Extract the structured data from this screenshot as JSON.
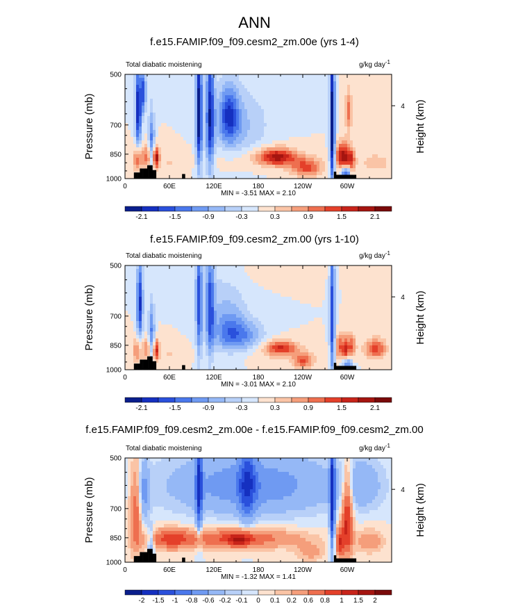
{
  "page_title": "ANN",
  "chart_data": [
    {
      "type": "heatmap",
      "title": "f.e15.FAMIP.f09_f09.cesm2_zm.00e (yrs 1-4)",
      "left_label": "Total diabatic moistening",
      "units_main": "g/kg day",
      "units_exp": "-1",
      "xlabel": "",
      "ylabel": "Pressure (mb)",
      "y2label": "Height (km)",
      "y2_tick_label": "4",
      "x_ticks": [
        "0",
        "60E",
        "120E",
        "180",
        "120W",
        "60W"
      ],
      "y_ticks": [
        "500",
        "700",
        "850",
        "1000"
      ],
      "min_max": "MIN =  -3.51  MAX =   2.10",
      "colorbar_labels": [
        "-2.1",
        "-1.5",
        "-0.9",
        "-0.3",
        "0.3",
        "0.9",
        "1.5",
        "2.1"
      ],
      "colorbar_colors": [
        "#0a1e8c",
        "#1530c0",
        "#2a50dc",
        "#4a78ec",
        "#6f9af2",
        "#95b8f6",
        "#b8d0f8",
        "#d6e6fc",
        "#fde2cf",
        "#fac4a6",
        "#f59e7b",
        "#ee6f4f",
        "#e4402a",
        "#c8241a",
        "#a51510",
        "#7a0a0a"
      ],
      "features": [
        {
          "lon": 18,
          "p": 630,
          "sx": 3,
          "sy": 120,
          "v": -2.2
        },
        {
          "lon": 25,
          "p": 560,
          "sx": 2.5,
          "sy": 60,
          "v": -1.6
        },
        {
          "lon": 30,
          "p": 870,
          "sx": 6,
          "sy": 50,
          "v": 1.1
        },
        {
          "lon": 36,
          "p": 800,
          "sx": 3,
          "sy": 120,
          "v": -1.4
        },
        {
          "lon": 42,
          "p": 870,
          "sx": 3,
          "sy": 45,
          "v": 1.9
        },
        {
          "lon": 16,
          "p": 880,
          "sx": 4,
          "sy": 50,
          "v": 1.1
        },
        {
          "lon": 100,
          "p": 650,
          "sx": 3,
          "sy": 200,
          "v": -2.4
        },
        {
          "lon": 115,
          "p": 660,
          "sx": 4,
          "sy": 200,
          "v": -2.0
        },
        {
          "lon": 140,
          "p": 660,
          "sx": 10,
          "sy": 90,
          "v": -1.6
        },
        {
          "lon": 160,
          "p": 700,
          "sx": 25,
          "sy": 110,
          "v": -0.6
        },
        {
          "lon": 205,
          "p": 865,
          "sx": 18,
          "sy": 35,
          "v": 1.8
        },
        {
          "lon": 245,
          "p": 930,
          "sx": 15,
          "sy": 40,
          "v": 1.3
        },
        {
          "lon": 280,
          "p": 700,
          "sx": 2.5,
          "sy": 240,
          "v": -2.6
        },
        {
          "lon": 290,
          "p": 860,
          "sx": 4,
          "sy": 50,
          "v": 1.6
        },
        {
          "lon": 297,
          "p": 880,
          "sx": 3,
          "sy": 60,
          "v": 1.7
        },
        {
          "lon": 305,
          "p": 880,
          "sx": 4,
          "sy": 50,
          "v": 1.6
        },
        {
          "lon": 302,
          "p": 640,
          "sx": 3,
          "sy": 70,
          "v": 1.0
        },
        {
          "lon": 298,
          "p": 960,
          "sx": 4,
          "sy": 35,
          "v": -2.2
        },
        {
          "lon": 180,
          "p": 880,
          "sx": 50,
          "sy": 40,
          "v": 0.25
        },
        {
          "lon": 338,
          "p": 900,
          "sx": 15,
          "sy": 40,
          "v": 0.5
        },
        {
          "lon": 335,
          "p": 540,
          "sx": 12,
          "sy": 40,
          "v": 0.25
        },
        {
          "lon": 60,
          "p": 900,
          "sx": 10,
          "sy": 50,
          "v": 0.3
        }
      ]
    },
    {
      "type": "heatmap",
      "title": "f.e15.FAMIP.f09_f09.cesm2_zm.00 (yrs 1-10)",
      "left_label": "Total diabatic moistening",
      "units_main": "g/kg day",
      "units_exp": "-1",
      "xlabel": "",
      "ylabel": "Pressure (mb)",
      "y2label": "Height (km)",
      "y2_tick_label": "4",
      "x_ticks": [
        "0",
        "60E",
        "120E",
        "180",
        "120W",
        "60W"
      ],
      "y_ticks": [
        "500",
        "700",
        "850",
        "1000"
      ],
      "min_max": "MIN =  -3.01  MAX =   2.10",
      "colorbar_labels": [
        "-2.1",
        "-1.5",
        "-0.9",
        "-0.3",
        "0.3",
        "0.9",
        "1.5",
        "2.1"
      ],
      "colorbar_colors": [
        "#0a1e8c",
        "#1530c0",
        "#2a50dc",
        "#4a78ec",
        "#6f9af2",
        "#95b8f6",
        "#b8d0f8",
        "#d6e6fc",
        "#fde2cf",
        "#fac4a6",
        "#f59e7b",
        "#ee6f4f",
        "#e4402a",
        "#c8241a",
        "#a51510",
        "#7a0a0a"
      ],
      "features": [
        {
          "lon": 20,
          "p": 640,
          "sx": 3,
          "sy": 120,
          "v": -1.9
        },
        {
          "lon": 30,
          "p": 875,
          "sx": 5,
          "sy": 45,
          "v": 1.0
        },
        {
          "lon": 36,
          "p": 800,
          "sx": 3,
          "sy": 120,
          "v": -1.3
        },
        {
          "lon": 42,
          "p": 880,
          "sx": 3,
          "sy": 45,
          "v": 1.6
        },
        {
          "lon": 16,
          "p": 880,
          "sx": 4,
          "sy": 50,
          "v": 1.0
        },
        {
          "lon": 100,
          "p": 640,
          "sx": 3,
          "sy": 200,
          "v": -1.6
        },
        {
          "lon": 115,
          "p": 660,
          "sx": 4,
          "sy": 190,
          "v": -1.4
        },
        {
          "lon": 140,
          "p": 780,
          "sx": 16,
          "sy": 80,
          "v": -1.2
        },
        {
          "lon": 165,
          "p": 800,
          "sx": 18,
          "sy": 60,
          "v": -0.8
        },
        {
          "lon": 130,
          "p": 620,
          "sx": 25,
          "sy": 80,
          "v": -0.4
        },
        {
          "lon": 210,
          "p": 865,
          "sx": 15,
          "sy": 30,
          "v": 1.5
        },
        {
          "lon": 240,
          "p": 940,
          "sx": 10,
          "sy": 35,
          "v": 1.2
        },
        {
          "lon": 280,
          "p": 700,
          "sx": 2.5,
          "sy": 240,
          "v": -1.8
        },
        {
          "lon": 290,
          "p": 860,
          "sx": 4,
          "sy": 50,
          "v": 1.2
        },
        {
          "lon": 298,
          "p": 880,
          "sx": 3,
          "sy": 60,
          "v": 1.3
        },
        {
          "lon": 306,
          "p": 860,
          "sx": 4,
          "sy": 50,
          "v": 1.2
        },
        {
          "lon": 300,
          "p": 970,
          "sx": 5,
          "sy": 35,
          "v": -1.6
        },
        {
          "lon": 338,
          "p": 870,
          "sx": 10,
          "sy": 40,
          "v": 1.4
        },
        {
          "lon": 180,
          "p": 900,
          "sx": 50,
          "sy": 40,
          "v": 0.2
        },
        {
          "lon": 60,
          "p": 900,
          "sx": 10,
          "sy": 50,
          "v": 0.3
        },
        {
          "lon": 200,
          "p": 520,
          "sx": 30,
          "sy": 30,
          "v": 0.2
        }
      ]
    },
    {
      "type": "heatmap",
      "title": "f.e15.FAMIP.f09_f09.cesm2_zm.00e - f.e15.FAMIP.f09_f09.cesm2_zm.00",
      "left_label": "Total diabatic moistening",
      "units_main": "g/kg day",
      "units_exp": "-1",
      "xlabel": "",
      "ylabel": "Pressure (mb)",
      "y2label": "Height (km)",
      "y2_tick_label": "4",
      "x_ticks": [
        "0",
        "60E",
        "120E",
        "180",
        "120W",
        "60W"
      ],
      "y_ticks": [
        "500",
        "700",
        "850",
        "1000"
      ],
      "min_max": "MIN =  -1.32  MAX =   1.41",
      "colorbar_labels": [
        "-2",
        "-1.5",
        "-1",
        "-0.8",
        "-0.6",
        "-0.2",
        "-0.1",
        "0",
        "0.1",
        "0.2",
        "0.6",
        "0.8",
        "1",
        "1.5",
        "2"
      ],
      "colorbar_colors": [
        "#0a1e8c",
        "#1530c0",
        "#2a50dc",
        "#4a78ec",
        "#6f9af2",
        "#95b8f6",
        "#b8d0f8",
        "#d6e6fc",
        "#fde2cf",
        "#fac4a6",
        "#f59e7b",
        "#ee6f4f",
        "#e4402a",
        "#c8241a",
        "#a51510",
        "#7a0a0a"
      ],
      "features": [
        {
          "lon": 170,
          "p": 600,
          "sx": 80,
          "sy": 90,
          "v": -0.55
        },
        {
          "lon": 100,
          "p": 620,
          "sx": 3,
          "sy": 150,
          "v": -0.9
        },
        {
          "lon": 165,
          "p": 600,
          "sx": 8,
          "sy": 120,
          "v": -0.6
        },
        {
          "lon": 25,
          "p": 640,
          "sx": 5,
          "sy": 100,
          "v": -0.5
        },
        {
          "lon": 280,
          "p": 660,
          "sx": 2.5,
          "sy": 200,
          "v": -1.1
        },
        {
          "lon": 320,
          "p": 600,
          "sx": 20,
          "sy": 70,
          "v": -0.3
        },
        {
          "lon": 150,
          "p": 855,
          "sx": 60,
          "sy": 40,
          "v": 0.6
        },
        {
          "lon": 155,
          "p": 860,
          "sx": 12,
          "sy": 30,
          "v": 0.5
        },
        {
          "lon": 60,
          "p": 860,
          "sx": 20,
          "sy": 40,
          "v": 0.55
        },
        {
          "lon": 15,
          "p": 720,
          "sx": 6,
          "sy": 150,
          "v": 0.6
        },
        {
          "lon": 300,
          "p": 740,
          "sx": 5,
          "sy": 150,
          "v": 0.9
        },
        {
          "lon": 35,
          "p": 880,
          "sx": 3,
          "sy": 60,
          "v": -0.5
        },
        {
          "lon": 290,
          "p": 880,
          "sx": 4,
          "sy": 60,
          "v": 0.7
        },
        {
          "lon": 330,
          "p": 870,
          "sx": 15,
          "sy": 50,
          "v": 0.3
        },
        {
          "lon": 250,
          "p": 940,
          "sx": 15,
          "sy": 40,
          "v": 0.25
        }
      ]
    }
  ]
}
